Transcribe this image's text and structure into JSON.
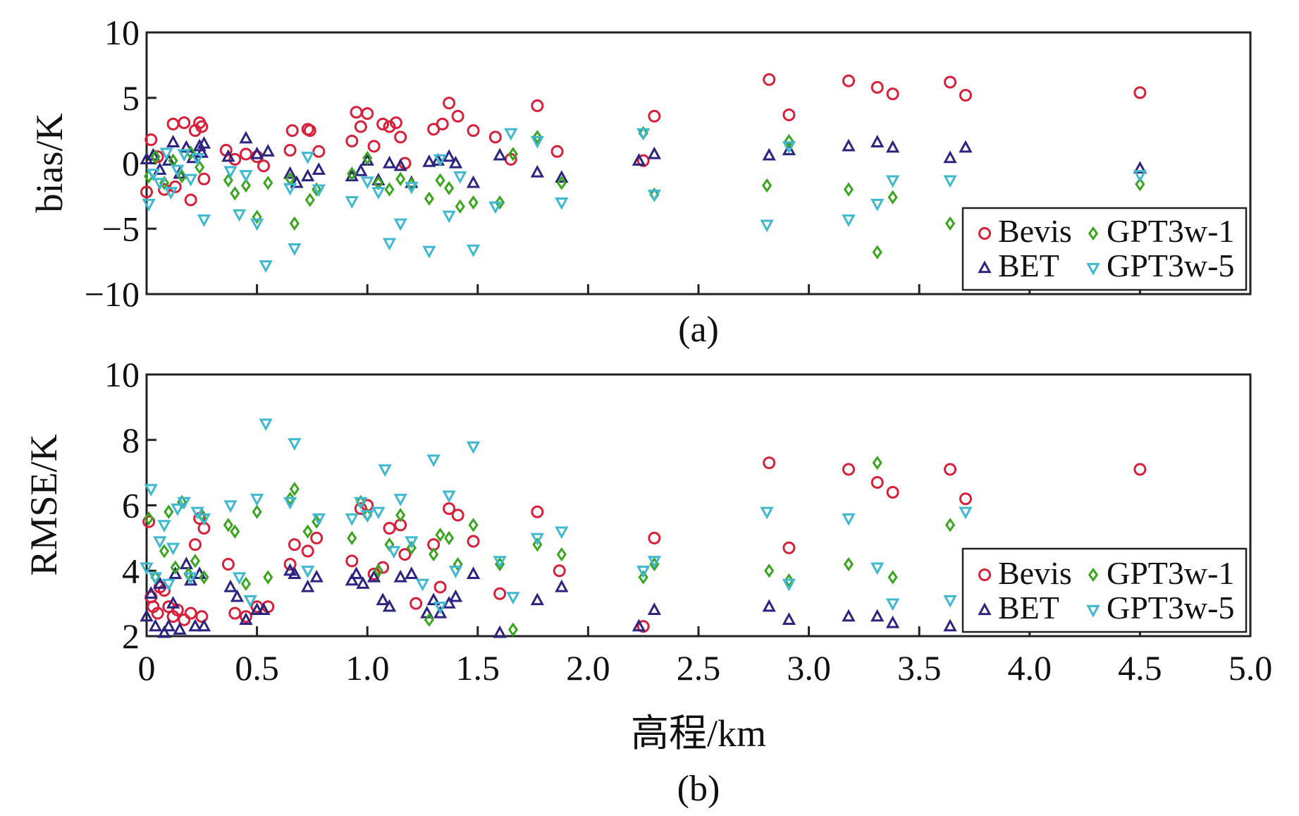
{
  "figure": {
    "xlabel": "高程/km",
    "x_ticks": [
      "0",
      "0.5",
      "1.0",
      "1.5",
      "2.0",
      "2.5",
      "3.0",
      "3.5",
      "4.0",
      "4.5",
      "5.0"
    ]
  },
  "colors": {
    "Bevis": "#d8203a",
    "BET": "#2b2480",
    "GPT3w-1": "#3aa51e",
    "GPT3w-5": "#3fb8d0"
  },
  "chart_data": [
    {
      "type": "scatter",
      "panel_label": "(a)",
      "ylabel": "bias/K",
      "xlabel": "",
      "xlim": [
        0,
        5
      ],
      "ylim": [
        -10,
        10
      ],
      "y_ticks": [
        "10",
        "5",
        "0",
        "−5",
        "−10"
      ],
      "legend": {
        "placement": "bottom-right",
        "entries": [
          "Bevis",
          "GPT3w-1",
          "BET",
          "GPT3w-5"
        ]
      },
      "series": [
        {
          "name": "Bevis",
          "marker": "circle",
          "x": [
            0.0,
            0.02,
            0.05,
            0.08,
            0.12,
            0.13,
            0.17,
            0.2,
            0.22,
            0.24,
            0.25,
            0.26,
            0.36,
            0.4,
            0.45,
            0.5,
            0.53,
            0.65,
            0.66,
            0.73,
            0.74,
            0.78,
            0.93,
            0.95,
            0.97,
            1.0,
            1.03,
            1.07,
            1.1,
            1.13,
            1.15,
            1.17,
            1.3,
            1.34,
            1.37,
            1.41,
            1.48,
            1.58,
            1.65,
            1.77,
            1.86,
            2.25,
            2.3,
            2.82,
            2.91,
            3.18,
            3.31,
            3.38,
            3.64,
            3.71,
            4.5
          ],
          "y": [
            -2.2,
            1.8,
            0.5,
            -2.0,
            3.0,
            -1.8,
            3.1,
            -2.8,
            2.5,
            3.1,
            2.8,
            -1.2,
            1.0,
            0.3,
            0.7,
            0.5,
            -0.2,
            1.0,
            2.5,
            2.6,
            2.5,
            0.9,
            1.7,
            3.9,
            2.8,
            3.8,
            1.3,
            3.0,
            2.8,
            3.1,
            2.0,
            0.0,
            2.6,
            3.0,
            4.6,
            3.6,
            2.5,
            2.0,
            0.3,
            4.4,
            0.9,
            0.2,
            3.6,
            6.4,
            3.7,
            6.3,
            5.8,
            5.3,
            6.2,
            5.2,
            5.4
          ]
        },
        {
          "name": "BET",
          "marker": "triangle-up",
          "x": [
            0.0,
            0.03,
            0.06,
            0.1,
            0.12,
            0.15,
            0.18,
            0.21,
            0.24,
            0.25,
            0.26,
            0.37,
            0.45,
            0.5,
            0.55,
            0.65,
            0.68,
            0.73,
            0.78,
            0.93,
            0.97,
            1.0,
            1.05,
            1.1,
            1.15,
            1.2,
            1.28,
            1.32,
            1.37,
            1.4,
            1.48,
            1.6,
            1.77,
            1.88,
            2.23,
            2.3,
            2.82,
            2.91,
            3.18,
            3.31,
            3.38,
            3.64,
            3.71,
            4.5
          ],
          "y": [
            0.3,
            0.6,
            -0.5,
            0.2,
            1.6,
            -0.8,
            1.2,
            0.4,
            1.3,
            0.8,
            1.5,
            0.5,
            1.9,
            0.7,
            0.9,
            -0.8,
            -1.5,
            -1.0,
            -0.5,
            -1.0,
            -0.6,
            0.2,
            -1.3,
            0.0,
            -0.2,
            -1.5,
            0.1,
            0.2,
            0.5,
            0.0,
            -1.5,
            0.6,
            -0.7,
            -1.1,
            0.2,
            0.7,
            0.6,
            1.0,
            1.3,
            1.6,
            1.2,
            0.4,
            1.2,
            -0.4
          ]
        },
        {
          "name": "GPT3w-1",
          "marker": "diamond",
          "x": [
            0.01,
            0.04,
            0.08,
            0.12,
            0.16,
            0.2,
            0.24,
            0.37,
            0.4,
            0.45,
            0.5,
            0.55,
            0.65,
            0.67,
            0.74,
            0.77,
            0.93,
            1.0,
            1.05,
            1.1,
            1.15,
            1.2,
            1.28,
            1.33,
            1.37,
            1.42,
            1.48,
            1.6,
            1.66,
            1.77,
            1.88,
            2.25,
            2.3,
            2.81,
            2.91,
            3.18,
            3.31,
            3.38,
            3.64,
            4.5
          ],
          "y": [
            -1.0,
            0.5,
            -1.5,
            0.2,
            -1.0,
            0.8,
            -0.3,
            -1.3,
            -2.3,
            -1.7,
            -4.1,
            -1.5,
            -1.2,
            -4.6,
            -2.8,
            -2.0,
            -0.8,
            0.4,
            -1.5,
            -2.0,
            -1.2,
            -1.6,
            -2.7,
            -1.3,
            -1.9,
            -3.3,
            -3.0,
            -3.0,
            0.7,
            2.0,
            -1.5,
            2.3,
            -2.4,
            -1.7,
            1.7,
            -2.0,
            -6.8,
            -2.6,
            -4.6,
            -1.6
          ]
        },
        {
          "name": "GPT3w-5",
          "marker": "triangle-down",
          "x": [
            0.01,
            0.03,
            0.06,
            0.09,
            0.11,
            0.14,
            0.17,
            0.2,
            0.23,
            0.26,
            0.38,
            0.42,
            0.45,
            0.5,
            0.54,
            0.65,
            0.67,
            0.73,
            0.78,
            0.93,
            1.0,
            1.05,
            1.1,
            1.15,
            1.2,
            1.28,
            1.33,
            1.37,
            1.42,
            1.48,
            1.58,
            1.65,
            1.77,
            1.88,
            2.25,
            2.3,
            2.81,
            2.91,
            3.18,
            3.31,
            3.38,
            3.64,
            4.5
          ],
          "y": [
            -3.1,
            -0.8,
            -1.5,
            0.8,
            -2.2,
            -0.5,
            0.7,
            -1.2,
            0.4,
            -4.3,
            -0.6,
            -3.9,
            -0.9,
            -4.6,
            -7.8,
            -1.9,
            -6.5,
            0.5,
            -2.0,
            -2.9,
            -1.4,
            -2.2,
            -6.1,
            -4.6,
            -1.8,
            -6.7,
            0.3,
            -4.0,
            -1.0,
            -6.6,
            -3.3,
            2.3,
            1.7,
            -3.0,
            2.3,
            -2.4,
            -4.7,
            1.3,
            -4.3,
            -3.1,
            -1.3,
            -1.3,
            -0.9
          ]
        }
      ]
    },
    {
      "type": "scatter",
      "panel_label": "(b)",
      "ylabel": "RMSE/K",
      "xlabel": "高程/km",
      "xlim": [
        0,
        5
      ],
      "ylim": [
        2,
        10
      ],
      "y_ticks": [
        "10",
        "8",
        "6",
        "4",
        "2"
      ],
      "legend": {
        "placement": "bottom-right",
        "entries": [
          "Bevis",
          "GPT3w-1",
          "BET",
          "GPT3w-5"
        ]
      },
      "series": [
        {
          "name": "Bevis",
          "marker": "circle",
          "x": [
            0.01,
            0.02,
            0.03,
            0.05,
            0.06,
            0.08,
            0.1,
            0.12,
            0.14,
            0.17,
            0.2,
            0.22,
            0.24,
            0.25,
            0.26,
            0.37,
            0.4,
            0.45,
            0.5,
            0.55,
            0.65,
            0.67,
            0.73,
            0.77,
            0.93,
            0.97,
            1.0,
            1.03,
            1.07,
            1.1,
            1.15,
            1.17,
            1.22,
            1.3,
            1.33,
            1.37,
            1.41,
            1.48,
            1.6,
            1.77,
            1.87,
            2.25,
            2.3,
            2.82,
            2.91,
            3.18,
            3.31,
            3.38,
            3.64,
            3.71,
            4.5
          ],
          "y": [
            5.5,
            3.2,
            2.9,
            2.7,
            3.5,
            3.4,
            2.9,
            2.6,
            2.8,
            2.5,
            2.7,
            4.8,
            5.6,
            2.6,
            5.3,
            4.2,
            2.7,
            2.6,
            2.9,
            2.9,
            4.2,
            4.8,
            4.6,
            5.0,
            4.3,
            5.9,
            6.0,
            3.9,
            4.1,
            5.3,
            5.4,
            4.5,
            3.0,
            4.8,
            3.5,
            5.9,
            5.7,
            4.9,
            3.3,
            5.8,
            4.0,
            2.3,
            5.0,
            7.3,
            4.7,
            7.1,
            6.7,
            6.4,
            7.1,
            6.2,
            7.1
          ]
        },
        {
          "name": "BET",
          "marker": "triangle-up",
          "x": [
            0.0,
            0.02,
            0.04,
            0.06,
            0.08,
            0.1,
            0.12,
            0.13,
            0.15,
            0.18,
            0.2,
            0.22,
            0.24,
            0.26,
            0.38,
            0.41,
            0.45,
            0.5,
            0.53,
            0.65,
            0.67,
            0.73,
            0.77,
            0.93,
            0.95,
            0.98,
            1.03,
            1.07,
            1.1,
            1.15,
            1.2,
            1.27,
            1.3,
            1.33,
            1.37,
            1.4,
            1.48,
            1.6,
            1.77,
            1.88,
            2.23,
            2.3,
            2.82,
            2.91,
            3.18,
            3.31,
            3.38,
            3.64
          ],
          "y": [
            2.6,
            3.3,
            2.3,
            3.6,
            2.1,
            2.3,
            3.0,
            3.9,
            2.2,
            4.2,
            3.7,
            2.3,
            3.9,
            2.3,
            3.5,
            3.2,
            2.5,
            2.8,
            2.8,
            4.0,
            3.9,
            3.5,
            3.8,
            3.7,
            3.9,
            3.6,
            3.8,
            3.1,
            2.9,
            3.8,
            3.9,
            2.7,
            3.1,
            2.7,
            3.0,
            3.2,
            3.9,
            2.1,
            3.1,
            3.5,
            2.3,
            2.8,
            2.9,
            2.5,
            2.6,
            2.6,
            2.4,
            2.3
          ]
        },
        {
          "name": "GPT3w-1",
          "marker": "diamond",
          "x": [
            0.01,
            0.04,
            0.08,
            0.1,
            0.13,
            0.16,
            0.19,
            0.22,
            0.25,
            0.26,
            0.37,
            0.4,
            0.45,
            0.5,
            0.55,
            0.65,
            0.67,
            0.73,
            0.77,
            0.93,
            0.97,
            1.0,
            1.05,
            1.1,
            1.15,
            1.2,
            1.28,
            1.3,
            1.33,
            1.37,
            1.41,
            1.48,
            1.6,
            1.66,
            1.77,
            1.88,
            2.25,
            2.3,
            2.82,
            2.91,
            3.18,
            3.31,
            3.38,
            3.64
          ],
          "y": [
            5.6,
            3.8,
            4.6,
            5.8,
            4.1,
            6.1,
            3.9,
            4.3,
            5.7,
            3.8,
            5.4,
            5.2,
            3.6,
            5.8,
            3.8,
            6.2,
            6.5,
            5.2,
            5.5,
            5.0,
            6.1,
            5.7,
            4.0,
            4.8,
            5.7,
            4.7,
            2.5,
            4.5,
            5.1,
            5.0,
            4.2,
            5.4,
            4.2,
            2.2,
            4.8,
            4.5,
            3.8,
            4.2,
            4.0,
            3.7,
            4.2,
            7.3,
            3.8,
            5.4
          ]
        },
        {
          "name": "GPT3w-5",
          "marker": "triangle-down",
          "x": [
            0.0,
            0.02,
            0.04,
            0.06,
            0.08,
            0.1,
            0.12,
            0.14,
            0.17,
            0.2,
            0.23,
            0.26,
            0.38,
            0.42,
            0.47,
            0.5,
            0.54,
            0.65,
            0.67,
            0.73,
            0.78,
            0.93,
            0.97,
            1.0,
            1.05,
            1.08,
            1.12,
            1.15,
            1.2,
            1.25,
            1.3,
            1.33,
            1.37,
            1.4,
            1.48,
            1.6,
            1.66,
            1.77,
            1.88,
            2.25,
            2.3,
            2.81,
            2.91,
            3.18,
            3.31,
            3.38,
            3.64,
            3.71
          ],
          "y": [
            4.1,
            6.5,
            3.8,
            4.9,
            5.4,
            3.6,
            4.7,
            5.9,
            6.1,
            3.8,
            5.8,
            5.6,
            6.0,
            3.8,
            3.1,
            6.2,
            8.5,
            6.1,
            7.9,
            4.0,
            5.6,
            5.6,
            6.1,
            5.7,
            5.8,
            7.1,
            4.6,
            6.2,
            4.9,
            3.6,
            7.4,
            2.9,
            6.3,
            4.0,
            7.8,
            4.3,
            3.2,
            5.0,
            5.2,
            4.0,
            4.3,
            5.8,
            3.6,
            5.6,
            4.1,
            3.0,
            3.1,
            5.8
          ]
        }
      ]
    }
  ]
}
